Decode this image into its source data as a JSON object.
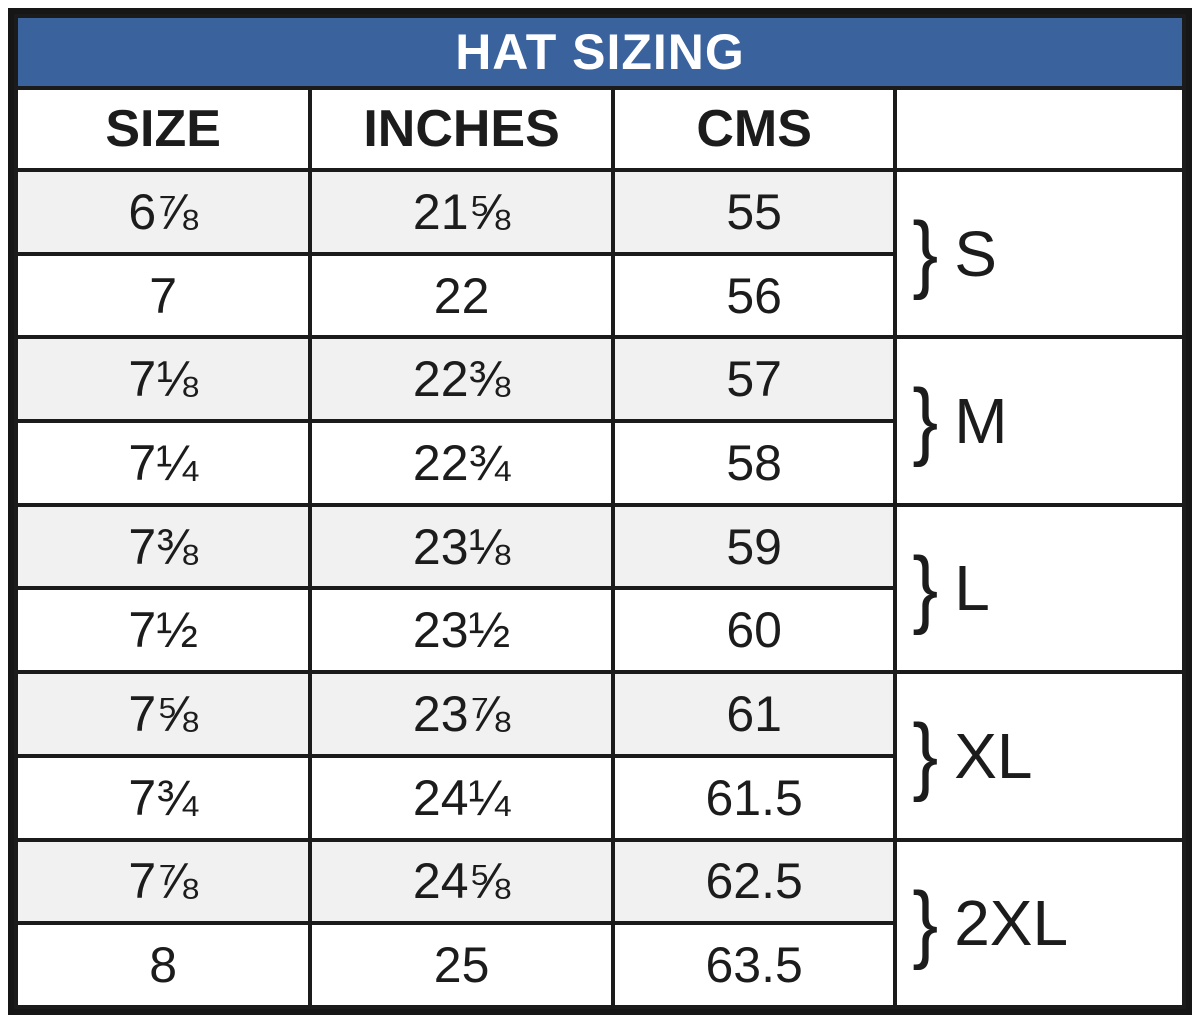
{
  "chart_data": {
    "type": "table",
    "title": "HAT SIZING",
    "columns": [
      "SIZE",
      "INCHES",
      "CMS",
      ""
    ],
    "rows": [
      [
        "6⅞",
        "21⅝",
        "55"
      ],
      [
        "7",
        "22",
        "56"
      ],
      [
        "7⅛",
        "22⅜",
        "57"
      ],
      [
        "7¼",
        "22¾",
        "58"
      ],
      [
        "7⅜",
        "23⅛",
        "59"
      ],
      [
        "7½",
        "23½",
        "60"
      ],
      [
        "7⅝",
        "23⅞",
        "61"
      ],
      [
        "7¾",
        "24¼",
        "61.5"
      ],
      [
        "7⅞",
        "24⅝",
        "62.5"
      ],
      [
        "8",
        "25",
        "63.5"
      ]
    ],
    "row_groups": [
      {
        "brace": "}",
        "label": "S",
        "spans_rows": [
          0,
          1
        ]
      },
      {
        "brace": "}",
        "label": "M",
        "spans_rows": [
          2,
          3
        ]
      },
      {
        "brace": "}",
        "label": "L",
        "spans_rows": [
          4,
          5
        ]
      },
      {
        "brace": "}",
        "label": "XL",
        "spans_rows": [
          6,
          7
        ]
      },
      {
        "brace": "}",
        "label": "2XL",
        "spans_rows": [
          8,
          9
        ]
      }
    ],
    "layout_hints": {
      "title_bar_bg": "#3a639e",
      "title_text_color": "#ffffff",
      "alt_row_bg": "#f1f1f1",
      "border_color": "#1b1b1b",
      "text_color": "#1c1c1c",
      "shaded_rows": [
        0,
        2,
        4,
        6,
        8
      ]
    }
  }
}
